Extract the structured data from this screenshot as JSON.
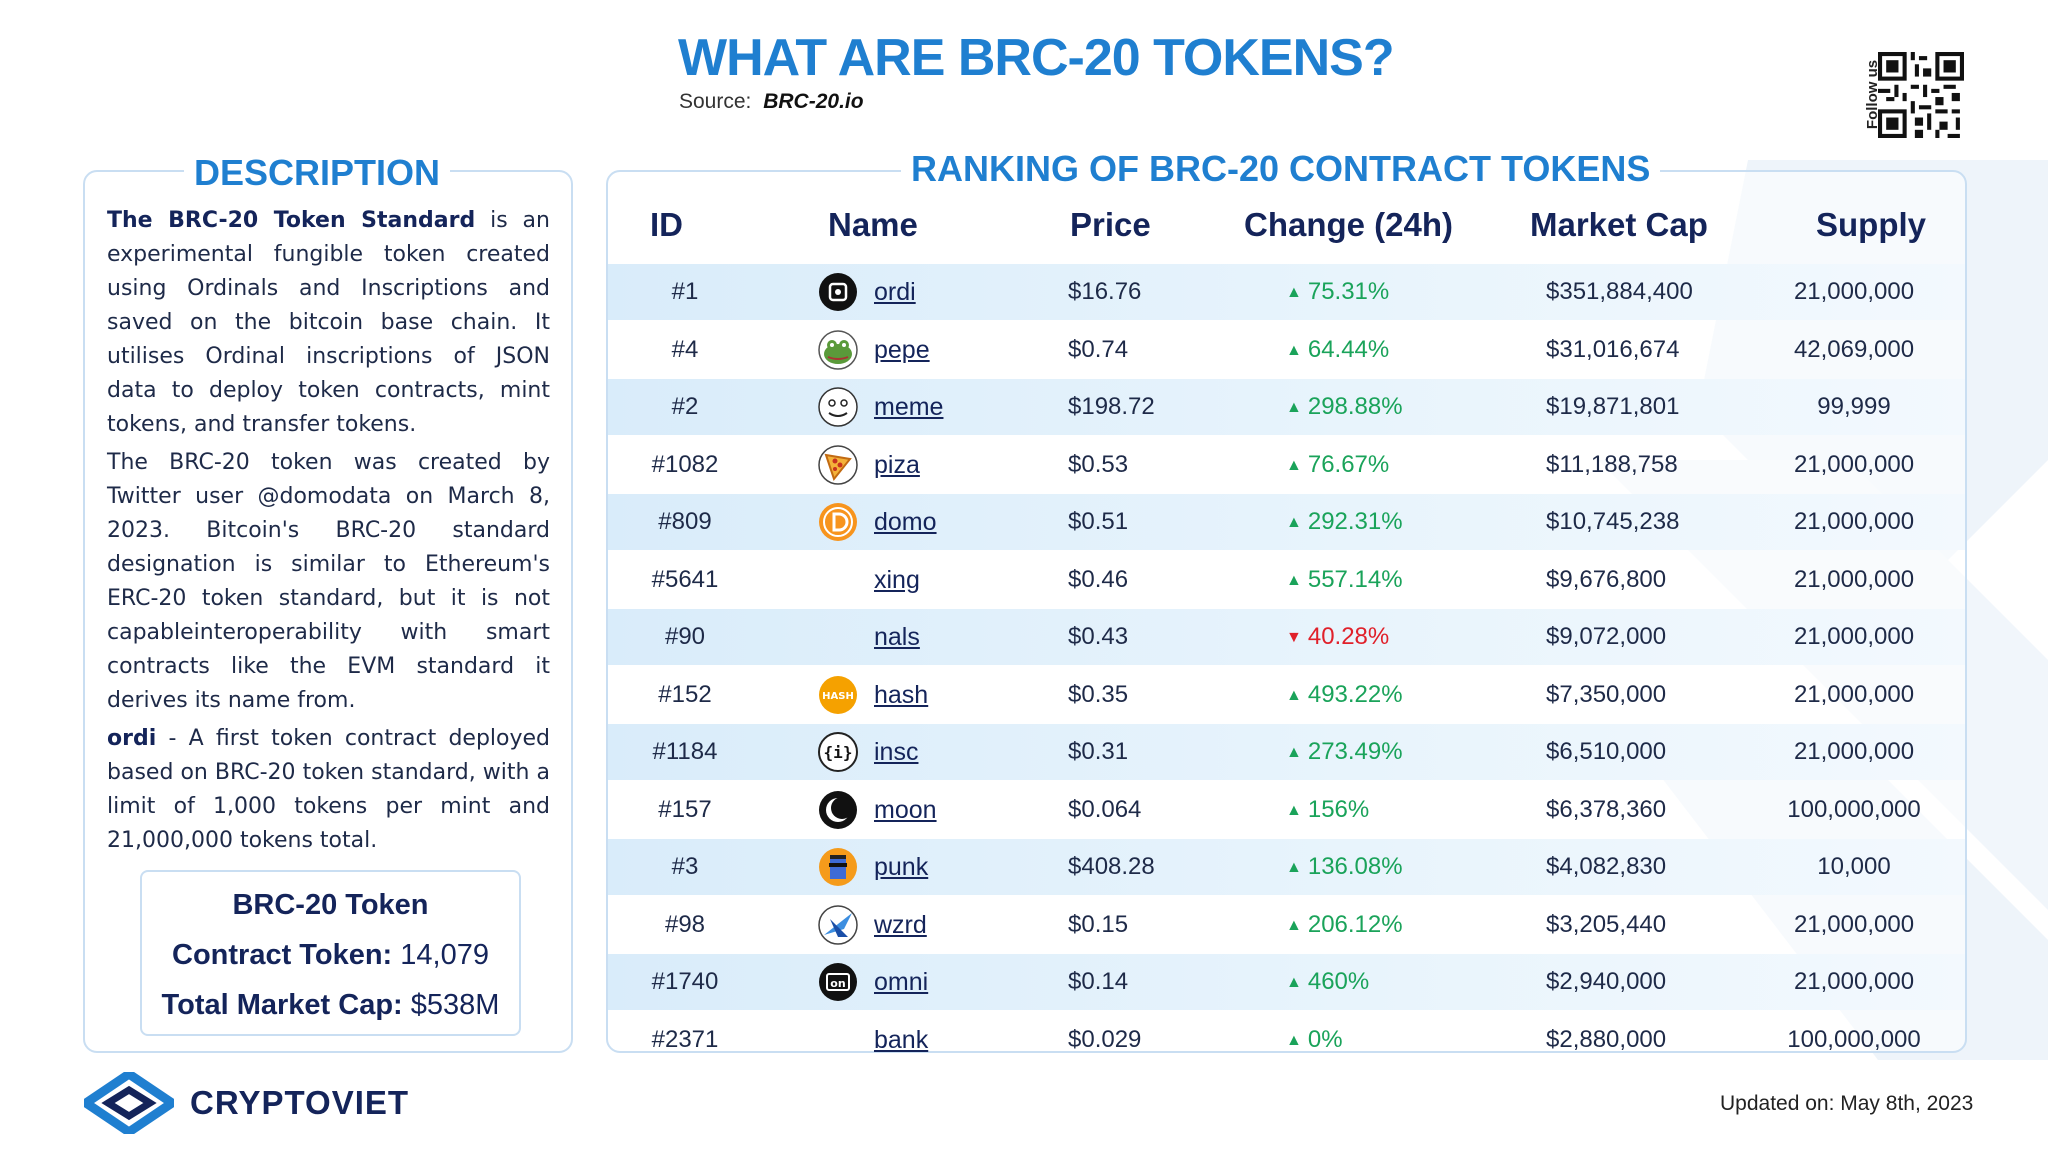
{
  "header": {
    "title": "WHAT ARE BRC-20 TOKENS?",
    "source_label": "Source:",
    "source_value": "BRC-20.io",
    "follow_label": "Follow us"
  },
  "description": {
    "heading": "DESCRIPTION",
    "p1_bold": "The BRC-20 Token Standard",
    "p1_rest": " is an experimental fungible token created using Ordinals and Inscriptions and saved on the bitcoin base chain. It utilises Ordinal inscriptions of JSON data to deploy token contracts, mint tokens, and transfer tokens.",
    "p2": "The BRC-20 token was created by Twitter user @domodata on March 8, 2023. Bitcoin's BRC-20 standard designation is similar to Ethereum's ERC-20 token standard, but it is not capableinteroperability with smart contracts like the EVM standard it derives its name from.",
    "p3_bold": "ordi",
    "p3_rest": " - A first token contract deployed based on BRC-20 token standard, with a limit of 1,000 tokens per mint and 21,000,000 tokens total.",
    "stats": {
      "line1": "BRC-20 Token",
      "line2_label": "Contract Token:",
      "line2_value": "14,079",
      "line3_label": "Total Market Cap:",
      "line3_value": "$538M"
    }
  },
  "ranking": {
    "heading": "RANKING OF BRC-20 CONTRACT TOKENS",
    "columns": [
      "ID",
      "Name",
      "Price",
      "Change (24h)",
      "Market Cap",
      "Supply"
    ],
    "rows": [
      {
        "id": "#1",
        "name": "ordi",
        "price": "$16.76",
        "change": "75.31%",
        "dir": "up",
        "mcap": "$351,884,400",
        "supply": "21,000,000",
        "icon": "ordi-icon"
      },
      {
        "id": "#4",
        "name": "pepe",
        "price": "$0.74",
        "change": "64.44%",
        "dir": "up",
        "mcap": "$31,016,674",
        "supply": "42,069,000",
        "icon": "pepe-frog-icon"
      },
      {
        "id": "#2",
        "name": "meme",
        "price": "$198.72",
        "change": "298.88%",
        "dir": "up",
        "mcap": "$19,871,801",
        "supply": "99,999",
        "icon": "meme-face-icon"
      },
      {
        "id": "#1082",
        "name": "piza",
        "price": "$0.53",
        "change": "76.67%",
        "dir": "up",
        "mcap": "$11,188,758",
        "supply": "21,000,000",
        "icon": "pizza-icon"
      },
      {
        "id": "#809",
        "name": "domo",
        "price": "$0.51",
        "change": "292.31%",
        "dir": "up",
        "mcap": "$10,745,238",
        "supply": "21,000,000",
        "icon": "domo-coin-icon"
      },
      {
        "id": "#5641",
        "name": "xing",
        "price": "$0.46",
        "change": "557.14%",
        "dir": "up",
        "mcap": "$9,676,800",
        "supply": "21,000,000",
        "icon": ""
      },
      {
        "id": "#90",
        "name": "nals",
        "price": "$0.43",
        "change": "40.28%",
        "dir": "down",
        "mcap": "$9,072,000",
        "supply": "21,000,000",
        "icon": ""
      },
      {
        "id": "#152",
        "name": "hash",
        "price": "$0.35",
        "change": "493.22%",
        "dir": "up",
        "mcap": "$7,350,000",
        "supply": "21,000,000",
        "icon": "hash-icon",
        "icon_text": "HASH"
      },
      {
        "id": "#1184",
        "name": "insc",
        "price": "$0.31",
        "change": "273.49%",
        "dir": "up",
        "mcap": "$6,510,000",
        "supply": "21,000,000",
        "icon": "insc-icon",
        "icon_text": "{i}"
      },
      {
        "id": "#157",
        "name": "moon",
        "price": "$0.064",
        "change": "156%",
        "dir": "up",
        "mcap": "$6,378,360",
        "supply": "100,000,000",
        "icon": "moon-icon"
      },
      {
        "id": "#3",
        "name": "punk",
        "price": "$408.28",
        "change": "136.08%",
        "dir": "up",
        "mcap": "$4,082,830",
        "supply": "10,000",
        "icon": "punk-icon"
      },
      {
        "id": "#98",
        "name": "wzrd",
        "price": "$0.15",
        "change": "206.12%",
        "dir": "up",
        "mcap": "$3,205,440",
        "supply": "21,000,000",
        "icon": "wizard-icon"
      },
      {
        "id": "#1740",
        "name": "omni",
        "price": "$0.14",
        "change": "460%",
        "dir": "up",
        "mcap": "$2,940,000",
        "supply": "21,000,000",
        "icon": "omni-icon",
        "icon_text": "on"
      },
      {
        "id": "#2371",
        "name": "bank",
        "price": "$0.029",
        "change": "0%",
        "dir": "up",
        "mcap": "$2,880,000",
        "supply": "100,000,000",
        "icon": ""
      }
    ]
  },
  "footer": {
    "brand": "CRYPTOVIET",
    "updated": "Updated on: May 8th, 2023"
  },
  "colors": {
    "accent": "#1f7fd0",
    "navy": "#14245a",
    "up": "#1aa35a",
    "down": "#e0202a"
  }
}
